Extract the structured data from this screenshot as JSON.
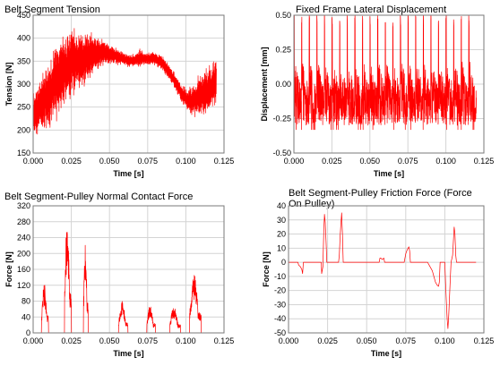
{
  "chart_data": [
    {
      "id": "tension",
      "type": "line",
      "title": "Belt Segment Tension",
      "xlabel": "Time [s]",
      "ylabel": "Tension [N]",
      "xlim": [
        0.0,
        0.125
      ],
      "ylim": [
        150,
        450
      ],
      "xticks": [
        "0.000",
        "0.025",
        "0.050",
        "0.075",
        "0.100",
        "0.125"
      ],
      "yticks": [
        "150",
        "200",
        "250",
        "300",
        "350",
        "400",
        "450"
      ],
      "grid": true,
      "color": "#ff0000",
      "series": [
        {
          "envelope": {
            "x": [
              0.0,
              0.005,
              0.01,
              0.015,
              0.02,
              0.025,
              0.03,
              0.035,
              0.04,
              0.045,
              0.05,
              0.055,
              0.06,
              0.065,
              0.07,
              0.075,
              0.08,
              0.085,
              0.09,
              0.095,
              0.1,
              0.105,
              0.11,
              0.115,
              0.12
            ],
            "lo": [
              175,
              185,
              195,
              215,
              245,
              265,
              280,
              300,
              320,
              335,
              340,
              340,
              338,
              336,
              335,
              340,
              340,
              325,
              305,
              270,
              245,
              225,
              225,
              230,
              240
            ],
            "hi": [
              290,
              330,
              360,
              395,
              410,
              430,
              425,
              420,
              410,
              400,
              390,
              380,
              368,
              365,
              378,
              370,
              372,
              365,
              340,
              315,
              290,
              300,
              335,
              340,
              370
            ]
          }
        }
      ]
    },
    {
      "id": "displacement",
      "type": "line",
      "title": "Fixed Frame Lateral Displacement",
      "xlabel": "Time [s]",
      "ylabel": "Displacement [mm]",
      "xlim": [
        0.0,
        0.125
      ],
      "ylim": [
        -0.5,
        0.5
      ],
      "xticks": [
        "0.000",
        "0.025",
        "0.050",
        "0.075",
        "0.100",
        "0.125"
      ],
      "yticks": [
        "-0.50",
        "-0.25",
        "0.00",
        "0.25",
        "0.50"
      ],
      "grid": true,
      "color": "#ff0000",
      "series": [
        {
          "spike_period_s": 0.005,
          "spike_peak": 0.52,
          "baseline_range": [
            -0.3,
            0.22
          ],
          "min_value": -0.33
        }
      ]
    },
    {
      "id": "normal",
      "type": "line",
      "title": "Belt Segment-Pulley Normal Contact Force",
      "xlabel": "Time [s]",
      "ylabel": "Force [N]",
      "xlim": [
        0.0,
        0.125
      ],
      "ylim": [
        0,
        320
      ],
      "xticks": [
        "0.000",
        "0.025",
        "0.050",
        "0.075",
        "0.100",
        "0.125"
      ],
      "yticks": [
        "0",
        "40",
        "80",
        "120",
        "160",
        "200",
        "240",
        "280",
        "320"
      ],
      "grid": true,
      "color": "#ff0000",
      "series": [
        {
          "bursts": [
            {
              "start": 0.0055,
              "end": 0.01,
              "peak": 125
            },
            {
              "start": 0.0205,
              "end": 0.025,
              "peak": 285
            },
            {
              "start": 0.033,
              "end": 0.036,
              "peak": 232
            },
            {
              "start": 0.056,
              "end": 0.062,
              "peak": 80
            },
            {
              "start": 0.0745,
              "end": 0.08,
              "peak": 70
            },
            {
              "start": 0.0895,
              "end": 0.0965,
              "peak": 65
            },
            {
              "start": 0.1025,
              "end": 0.11,
              "peak": 150
            }
          ]
        }
      ]
    },
    {
      "id": "friction",
      "type": "line",
      "title": "Belt Segment-Pulley Friction Force (Force On Pulley)",
      "xlabel": "Time [s]",
      "ylabel": "Force [N]",
      "xlim": [
        0.0,
        0.125
      ],
      "ylim": [
        -50,
        40
      ],
      "xticks": [
        "0.000",
        "0.025",
        "0.050",
        "0.075",
        "0.100",
        "0.125"
      ],
      "yticks": [
        "-50",
        "-40",
        "-30",
        "-20",
        "-10",
        "0",
        "10",
        "20",
        "30",
        "40"
      ],
      "grid": true,
      "color": "#ff0000",
      "series": [
        {
          "points": [
            [
              0.0,
              0
            ],
            [
              0.006,
              0
            ],
            [
              0.0065,
              -2
            ],
            [
              0.0075,
              -3
            ],
            [
              0.0085,
              -5
            ],
            [
              0.009,
              -8
            ],
            [
              0.0095,
              0
            ],
            [
              0.021,
              0
            ],
            [
              0.0212,
              -8
            ],
            [
              0.022,
              -3
            ],
            [
              0.0225,
              20
            ],
            [
              0.023,
              34
            ],
            [
              0.0235,
              28
            ],
            [
              0.024,
              15
            ],
            [
              0.0245,
              0
            ],
            [
              0.032,
              0
            ],
            [
              0.0325,
              5
            ],
            [
              0.033,
              18
            ],
            [
              0.0335,
              27
            ],
            [
              0.034,
              35
            ],
            [
              0.0345,
              20
            ],
            [
              0.035,
              0
            ],
            [
              0.058,
              0
            ],
            [
              0.0585,
              3
            ],
            [
              0.059,
              3
            ],
            [
              0.06,
              2
            ],
            [
              0.061,
              3
            ],
            [
              0.0615,
              0
            ],
            [
              0.074,
              0
            ],
            [
              0.0745,
              3
            ],
            [
              0.075,
              6
            ],
            [
              0.076,
              9
            ],
            [
              0.077,
              11
            ],
            [
              0.0775,
              8
            ],
            [
              0.078,
              0
            ],
            [
              0.089,
              0
            ],
            [
              0.09,
              -2
            ],
            [
              0.092,
              -6
            ],
            [
              0.093,
              -10
            ],
            [
              0.094,
              -14
            ],
            [
              0.095,
              -16
            ],
            [
              0.096,
              -17
            ],
            [
              0.0965,
              -14
            ],
            [
              0.097,
              0
            ],
            [
              0.1,
              0
            ],
            [
              0.1005,
              -15
            ],
            [
              0.101,
              -28
            ],
            [
              0.1015,
              -40
            ],
            [
              0.102,
              -47
            ],
            [
              0.1025,
              -38
            ],
            [
              0.103,
              -25
            ],
            [
              0.1035,
              -12
            ],
            [
              0.104,
              0
            ],
            [
              0.105,
              5
            ],
            [
              0.1055,
              15
            ],
            [
              0.106,
              25
            ],
            [
              0.1065,
              20
            ],
            [
              0.107,
              5
            ],
            [
              0.1075,
              0
            ],
            [
              0.12,
              0
            ]
          ]
        }
      ]
    }
  ]
}
